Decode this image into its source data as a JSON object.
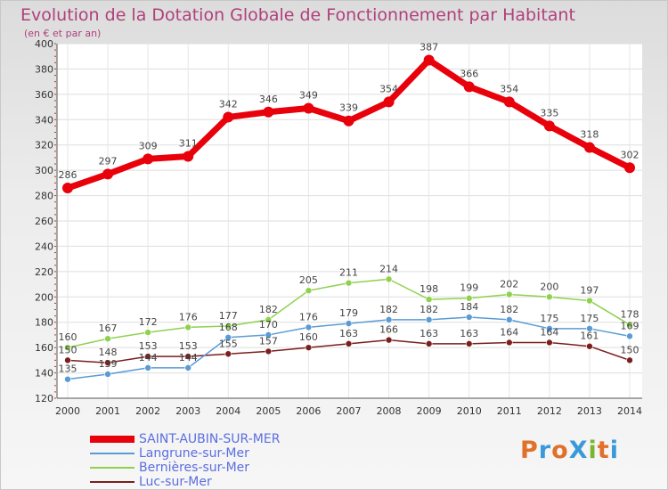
{
  "header": {
    "title": "Evolution de la Dotation Globale de Fonctionnement par Habitant",
    "subtitle": "(en € et par an)"
  },
  "logo": {
    "text": "ProXiti",
    "colors": [
      "#e0702a",
      "#3a9ad9",
      "#e0702a",
      "#3a9ad9",
      "#7ab530",
      "#e0702a",
      "#3a9ad9"
    ]
  },
  "chart_data": {
    "type": "line",
    "x": [
      "2000",
      "2001",
      "2002",
      "2003",
      "2004",
      "2005",
      "2006",
      "2007",
      "2008",
      "2009",
      "2010",
      "2011",
      "2012",
      "2013",
      "2014"
    ],
    "ylim": [
      120,
      400
    ],
    "yticks": [
      120,
      140,
      160,
      180,
      200,
      220,
      240,
      260,
      280,
      300,
      320,
      340,
      360,
      380,
      400
    ],
    "grid": true,
    "legend_position": "bottom-left",
    "series": [
      {
        "name": "SAINT-AUBIN-SUR-MER",
        "color": "#e8000b",
        "values": [
          286,
          297,
          309,
          311,
          342,
          346,
          349,
          339,
          354,
          387,
          366,
          354,
          335,
          318,
          302
        ]
      },
      {
        "name": "Langrune-sur-Mer",
        "color": "#5b9bd5",
        "values": [
          135,
          139,
          144,
          144,
          168,
          170,
          176,
          179,
          182,
          182,
          184,
          182,
          175,
          175,
          169
        ]
      },
      {
        "name": "Bernières-sur-Mer",
        "color": "#8fd14f",
        "values": [
          160,
          167,
          172,
          176,
          177,
          182,
          205,
          211,
          214,
          198,
          199,
          202,
          200,
          197,
          178
        ]
      },
      {
        "name": "Luc-sur-Mer",
        "color": "#7a1e1e",
        "values": [
          150,
          148,
          153,
          153,
          155,
          157,
          160,
          163,
          166,
          163,
          163,
          164,
          164,
          161,
          150
        ]
      }
    ]
  }
}
